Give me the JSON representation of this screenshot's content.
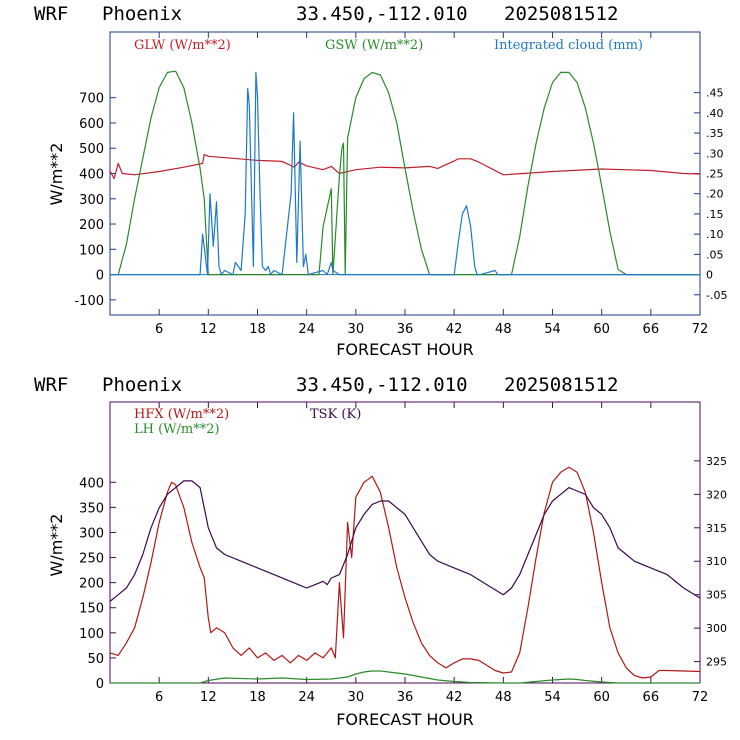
{
  "header1": {
    "model": "WRF",
    "place": "Phoenix",
    "coords": "33.450,-112.010",
    "init": "2025081512"
  },
  "header2": {
    "model": "WRF",
    "place": "Phoenix",
    "coords": "33.450,-112.010",
    "init": "2025081512"
  },
  "chart_data": [
    {
      "type": "line",
      "xlabel": "FORECAST HOUR",
      "ylabel": "W/m**2",
      "xlim": [
        0,
        72
      ],
      "ylim": [
        -160,
        960
      ],
      "xticks": [
        6,
        12,
        18,
        24,
        30,
        36,
        42,
        48,
        54,
        60,
        66,
        72
      ],
      "yticks": [
        -100,
        0,
        100,
        200,
        300,
        400,
        500,
        600,
        700
      ],
      "y2lim": [
        -0.1,
        0.6
      ],
      "y2ticks": [
        -0.05,
        0,
        0.05,
        0.1,
        0.15,
        0.2,
        0.25,
        0.3,
        0.35,
        0.4,
        0.45
      ],
      "y2ticklabels": [
        "-.05",
        "0",
        ".05",
        ".10",
        ".15",
        ".20",
        ".25",
        ".30",
        ".35",
        ".40",
        ".45"
      ],
      "grid": false,
      "legend_placement": "top",
      "series": [
        {
          "name": "GLW (W/m**2)",
          "color": "#c0202a",
          "axis": "left",
          "x": [
            0,
            0.5,
            1,
            1.5,
            3,
            6,
            9,
            11.3,
            11.5,
            12,
            15,
            18,
            21,
            22.5,
            23,
            24,
            26,
            27,
            28,
            30,
            33,
            36,
            39,
            40,
            42,
            42.5,
            44,
            45,
            48,
            54,
            60,
            66,
            70,
            72
          ],
          "values": [
            410,
            380,
            440,
            400,
            395,
            408,
            425,
            440,
            475,
            468,
            460,
            452,
            448,
            425,
            445,
            430,
            415,
            428,
            400,
            415,
            425,
            422,
            428,
            420,
            450,
            458,
            458,
            445,
            395,
            408,
            418,
            412,
            400,
            398
          ]
        },
        {
          "name": "GSW (W/m**2)",
          "color": "#2a8a2a",
          "axis": "left",
          "x": [
            0,
            1,
            2,
            3,
            4,
            5,
            6,
            7,
            8,
            9,
            10,
            11,
            11.5,
            12,
            13,
            18,
            21,
            25,
            25.5,
            26,
            27,
            27.2,
            28,
            28.3,
            28.5,
            28.7,
            29,
            30,
            31,
            32,
            33,
            34,
            35,
            36,
            37,
            38,
            39,
            40,
            48,
            49,
            50,
            51,
            52,
            53,
            54,
            55,
            56,
            57,
            58,
            59,
            60,
            61,
            62,
            63,
            72
          ],
          "values": [
            0,
            0,
            120,
            300,
            460,
            620,
            740,
            800,
            805,
            740,
            600,
            420,
            300,
            0,
            0,
            0,
            0,
            0,
            0,
            190,
            340,
            0,
            390,
            500,
            520,
            0,
            540,
            700,
            775,
            800,
            790,
            720,
            600,
            420,
            250,
            100,
            0,
            0,
            0,
            0,
            150,
            350,
            520,
            660,
            760,
            800,
            800,
            760,
            660,
            520,
            350,
            170,
            20,
            0,
            0
          ]
        },
        {
          "name": "Integrated cloud (mm)",
          "color": "#1e78c8",
          "axis": "right",
          "x": [
            0,
            11,
            11.3,
            11.6,
            11.9,
            12.2,
            12.6,
            13,
            13.3,
            13.6,
            14,
            15,
            15.3,
            16,
            16.5,
            16.8,
            17,
            17.5,
            17.8,
            18,
            18.3,
            18.6,
            19,
            19.3,
            19.6,
            20,
            21,
            22.1,
            22.4,
            22.8,
            23.2,
            23.6,
            23.9,
            24.2,
            26,
            26.5,
            27,
            27.2,
            28,
            42,
            42.5,
            43,
            43.5,
            44,
            44.5,
            44.8,
            45.2,
            47,
            47.3,
            48,
            72
          ],
          "values": [
            0,
            0,
            0.1,
            0.05,
            0,
            0.2,
            0.07,
            0.18,
            0.02,
            0,
            0.01,
            0,
            0.03,
            0.01,
            0.15,
            0.46,
            0.42,
            0.02,
            0.5,
            0.44,
            0.2,
            0.02,
            0.01,
            0.02,
            0,
            0.01,
            0,
            0.2,
            0.4,
            0.03,
            0.33,
            0.02,
            0.05,
            0,
            0.01,
            0,
            0.03,
            0.01,
            0,
            0,
            0.08,
            0.15,
            0.17,
            0.12,
            0.02,
            0,
            0,
            0.01,
            0,
            0,
            0
          ]
        }
      ]
    },
    {
      "type": "line",
      "xlabel": "FORECAST HOUR",
      "ylabel": "W/m**2",
      "xlim": [
        0,
        72
      ],
      "ylim": [
        0,
        560
      ],
      "xticks": [
        6,
        12,
        18,
        24,
        30,
        36,
        42,
        48,
        54,
        60,
        66,
        72
      ],
      "yticks": [
        0,
        50,
        100,
        150,
        200,
        250,
        300,
        350,
        400
      ],
      "y2lim": [
        291.8,
        333.8
      ],
      "y2ticks": [
        295,
        300,
        305,
        310,
        315,
        320,
        325
      ],
      "grid": false,
      "legend_placement": "top",
      "series": [
        {
          "name": "HFX (W/m**2)",
          "color": "#b01818",
          "axis": "left",
          "x": [
            0,
            1,
            2,
            3,
            4,
            5,
            6,
            7,
            7.5,
            8,
            9,
            10,
            11,
            11.5,
            12,
            12.3,
            13,
            14,
            15,
            16,
            17,
            18,
            19,
            20,
            21,
            22,
            23,
            24,
            25,
            26,
            26.5,
            27,
            27.5,
            28,
            28.5,
            29,
            29.5,
            30,
            31,
            32,
            33,
            34,
            35,
            36,
            37,
            38,
            39,
            40,
            41,
            42,
            43,
            44,
            45,
            46,
            47,
            48,
            49,
            50,
            51,
            52,
            53,
            54,
            55,
            56,
            57,
            58,
            59,
            60,
            61,
            62,
            63,
            64,
            65,
            66,
            67,
            68,
            72
          ],
          "values": [
            60,
            55,
            80,
            110,
            170,
            240,
            320,
            380,
            400,
            395,
            350,
            280,
            230,
            210,
            130,
            100,
            110,
            100,
            70,
            55,
            70,
            50,
            60,
            45,
            55,
            40,
            55,
            45,
            60,
            50,
            60,
            70,
            50,
            200,
            90,
            320,
            250,
            370,
            400,
            412,
            380,
            310,
            230,
            170,
            120,
            80,
            55,
            40,
            30,
            40,
            48,
            48,
            45,
            35,
            25,
            20,
            22,
            60,
            150,
            250,
            340,
            400,
            420,
            430,
            420,
            380,
            300,
            200,
            110,
            60,
            30,
            15,
            10,
            12,
            25,
            25,
            23
          ]
        },
        {
          "name": "LH (W/m**2)",
          "color": "#2a8a2a",
          "axis": "left",
          "x": [
            0,
            11,
            12,
            14,
            18,
            21,
            24,
            27,
            28,
            29,
            30,
            31,
            32,
            33,
            34,
            36,
            38,
            40,
            42,
            44,
            48,
            50,
            52,
            54,
            55,
            56,
            57,
            58,
            60,
            62,
            72
          ],
          "values": [
            0,
            0,
            5,
            10,
            8,
            10,
            7,
            8,
            10,
            12,
            18,
            22,
            24,
            24,
            22,
            18,
            12,
            6,
            3,
            1,
            0,
            0,
            3,
            6,
            7,
            8,
            7,
            5,
            2,
            0,
            0
          ]
        },
        {
          "name": "TSK (K)",
          "color": "#3a0a4a",
          "axis": "right",
          "x": [
            0,
            1,
            2,
            3,
            4,
            5,
            6,
            7,
            8,
            9,
            10,
            11,
            11.5,
            12,
            13,
            14,
            16,
            18,
            20,
            22,
            24,
            25,
            26,
            26.5,
            27,
            28,
            29,
            30,
            31,
            32,
            33,
            34,
            35,
            36,
            37,
            38,
            39,
            40,
            42,
            44,
            46,
            48,
            49,
            50,
            51,
            52,
            53,
            54,
            55,
            56,
            57,
            58,
            59,
            60,
            61,
            62,
            63,
            64,
            66,
            68,
            70,
            72
          ],
          "values": [
            304,
            305,
            306,
            308,
            311,
            315,
            318,
            320,
            321,
            322,
            322,
            321,
            318,
            315,
            312,
            311,
            310,
            309,
            308,
            307,
            306,
            306.5,
            307,
            306.5,
            307.5,
            308,
            311,
            315,
            317,
            318.5,
            319,
            319,
            318,
            317,
            315,
            313,
            311,
            310,
            309,
            308,
            306.5,
            305,
            306,
            308,
            311,
            314,
            317,
            319,
            320,
            321,
            320.5,
            320,
            318,
            317,
            315,
            312,
            311,
            310,
            309,
            308,
            306,
            304.5
          ]
        }
      ]
    }
  ]
}
